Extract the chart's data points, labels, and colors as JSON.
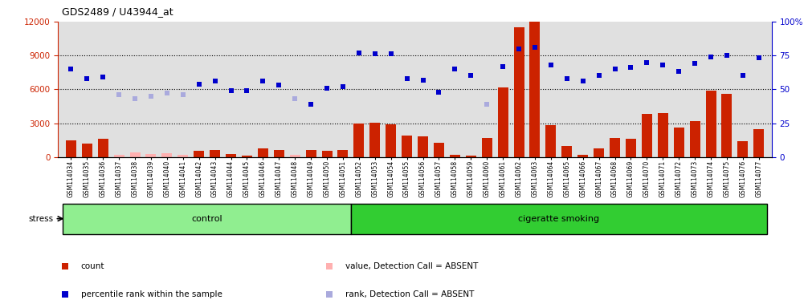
{
  "title": "GDS2489 / U43944_at",
  "samples": [
    "GSM114034",
    "GSM114035",
    "GSM114036",
    "GSM114037",
    "GSM114038",
    "GSM114039",
    "GSM114040",
    "GSM114041",
    "GSM114042",
    "GSM114043",
    "GSM114044",
    "GSM114045",
    "GSM114046",
    "GSM114047",
    "GSM114048",
    "GSM114049",
    "GSM114050",
    "GSM114051",
    "GSM114052",
    "GSM114053",
    "GSM114054",
    "GSM114055",
    "GSM114056",
    "GSM114057",
    "GSM114058",
    "GSM114059",
    "GSM114060",
    "GSM114061",
    "GSM114062",
    "GSM114063",
    "GSM114064",
    "GSM114065",
    "GSM114066",
    "GSM114067",
    "GSM114068",
    "GSM114069",
    "GSM114070",
    "GSM114071",
    "GSM114072",
    "GSM114073",
    "GSM114074",
    "GSM114075",
    "GSM114076",
    "GSM114077"
  ],
  "count_values": [
    1500,
    1200,
    1600,
    null,
    null,
    null,
    null,
    null,
    550,
    650,
    250,
    150,
    800,
    650,
    null,
    600,
    550,
    650,
    3000,
    3050,
    2900,
    1900,
    1800,
    1300,
    200,
    150,
    1700,
    6200,
    11500,
    12000,
    2800,
    1000,
    200,
    800,
    1700,
    1600,
    3800,
    3900,
    2600,
    3200,
    5900,
    5600,
    1400,
    2500
  ],
  "count_absent": [
    false,
    false,
    false,
    true,
    true,
    true,
    true,
    true,
    false,
    false,
    false,
    false,
    false,
    false,
    true,
    false,
    false,
    false,
    false,
    false,
    false,
    false,
    false,
    false,
    false,
    false,
    false,
    false,
    false,
    false,
    false,
    false,
    false,
    false,
    false,
    false,
    false,
    false,
    false,
    false,
    false,
    false,
    false,
    false
  ],
  "count_absent_values": [
    null,
    null,
    null,
    200,
    450,
    300,
    350,
    200,
    null,
    null,
    null,
    null,
    null,
    null,
    200,
    null,
    null,
    null,
    null,
    null,
    null,
    null,
    null,
    null,
    null,
    null,
    null,
    null,
    null,
    null,
    null,
    null,
    null,
    null,
    null,
    null,
    null,
    null,
    null,
    null,
    null,
    null,
    null,
    null
  ],
  "percentile_values": [
    65,
    58,
    59,
    null,
    null,
    null,
    null,
    null,
    54,
    56,
    49,
    49,
    56,
    53,
    null,
    39,
    51,
    52,
    77,
    76,
    76,
    58,
    57,
    48,
    65,
    60,
    null,
    67,
    80,
    81,
    68,
    58,
    56,
    60,
    65,
    66,
    70,
    68,
    63,
    69,
    74,
    75,
    60,
    73
  ],
  "percentile_absent": [
    false,
    false,
    false,
    false,
    false,
    false,
    false,
    false,
    false,
    false,
    false,
    false,
    false,
    false,
    false,
    false,
    false,
    false,
    false,
    false,
    false,
    false,
    false,
    false,
    false,
    false,
    false,
    false,
    false,
    false,
    false,
    false,
    false,
    false,
    false,
    false,
    false,
    false,
    false,
    false,
    false,
    false,
    false,
    false
  ],
  "rank_absent_values": [
    null,
    null,
    null,
    46,
    43,
    45,
    47,
    46,
    null,
    null,
    null,
    null,
    null,
    null,
    43,
    null,
    null,
    null,
    null,
    null,
    null,
    null,
    null,
    null,
    null,
    null,
    39,
    null,
    null,
    null,
    null,
    null,
    null,
    null,
    null,
    null,
    null,
    null,
    null,
    null,
    null,
    null,
    null,
    null
  ],
  "groups": [
    {
      "label": "control",
      "start": 0,
      "end": 18,
      "color": "#90ee90"
    },
    {
      "label": "cigeratte smoking",
      "start": 18,
      "end": 44,
      "color": "#32cd32"
    }
  ],
  "ylim_left": [
    0,
    12000
  ],
  "ylim_right": [
    0,
    100
  ],
  "yticks_left": [
    0,
    3000,
    6000,
    9000,
    12000
  ],
  "yticks_right": [
    0,
    25,
    50,
    75,
    100
  ],
  "count_color": "#cc2200",
  "count_absent_color": "#ffb0b0",
  "percentile_color": "#0000cc",
  "percentile_absent_color": "#aaaadd",
  "bg_color": "#e0e0e0",
  "stress_label": "stress",
  "legend_items": [
    {
      "label": "count",
      "color": "#cc2200"
    },
    {
      "label": "percentile rank within the sample",
      "color": "#0000cc"
    },
    {
      "label": "value, Detection Call = ABSENT",
      "color": "#ffb0b0"
    },
    {
      "label": "rank, Detection Call = ABSENT",
      "color": "#aaaadd"
    }
  ]
}
